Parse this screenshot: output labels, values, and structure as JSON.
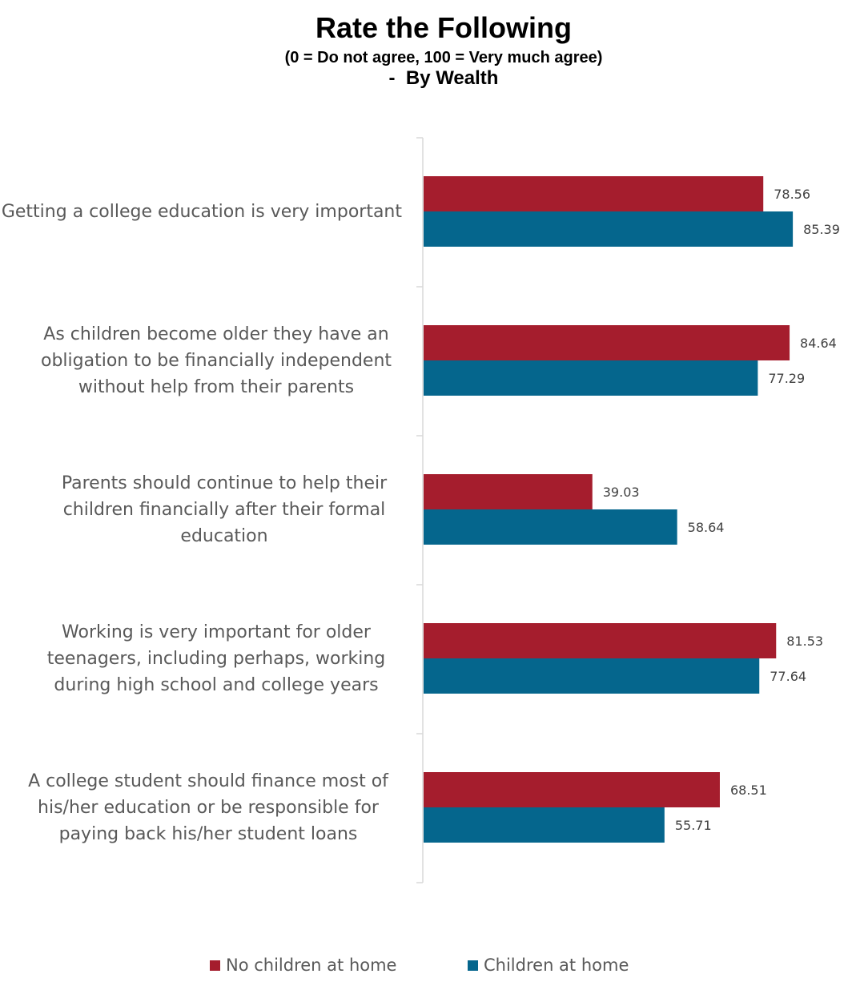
{
  "chart_data": {
    "type": "bar",
    "orientation": "horizontal",
    "title": "Rate the Following",
    "subtitle": "(0 = Do not agree, 100 = Very much agree)",
    "subtitle2": "-  By Wealth",
    "categories": [
      "Getting a college education is very important",
      "As children become older they have an obligation to be financially independent without help from their parents",
      "Parents should continue to help their children financially after their formal education",
      "Working is very important for older teenagers, including perhaps,  working during high school and college years",
      "A college student should finance most of his/her education or be responsible for paying back his/her student loans"
    ],
    "series": [
      {
        "name": "No children at home",
        "color": "#A51D2D",
        "values": [
          78.56,
          84.64,
          39.03,
          81.53,
          68.51
        ],
        "labels": [
          "78.56",
          "84.64",
          "39.03",
          "81.53",
          "68.51"
        ]
      },
      {
        "name": "Children at home",
        "color": "#05668D",
        "values": [
          85.39,
          77.29,
          58.64,
          77.64,
          55.71
        ],
        "labels": [
          "85.39",
          "77.29",
          "58.64",
          "77.64",
          "55.71"
        ]
      }
    ],
    "xlim": [
      0,
      100
    ],
    "axis_visible": false,
    "grid": false,
    "legend_position": "bottom",
    "data_labels": true
  }
}
